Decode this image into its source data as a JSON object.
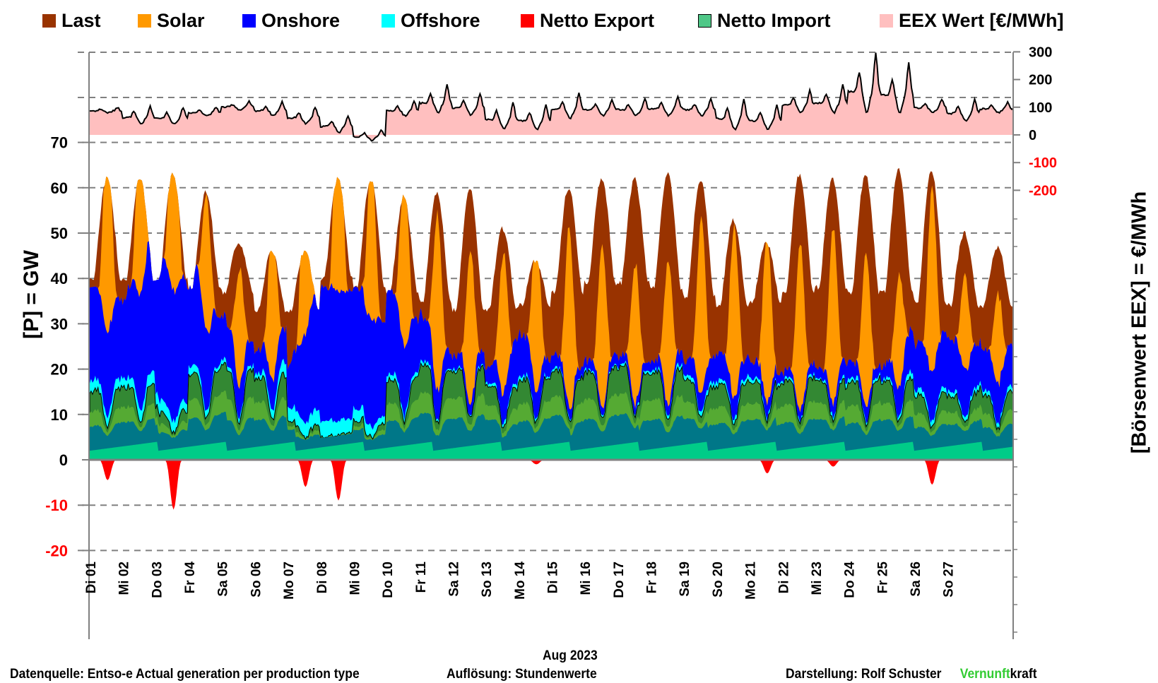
{
  "legend": [
    {
      "label": "Last",
      "color": "#993300",
      "border": ""
    },
    {
      "label": "Solar",
      "color": "#ff9900",
      "border": ""
    },
    {
      "label": "Onshore",
      "color": "#0000ff",
      "border": ""
    },
    {
      "label": "Offshore",
      "color": "#00ffff",
      "border": ""
    },
    {
      "label": "Netto Export",
      "color": "#ff0000",
      "border": ""
    },
    {
      "label": "Netto Import",
      "color": "#4fc787",
      "border": "#000000"
    },
    {
      "label": "EEX Wert [€/MWh]",
      "color": "#ffbfbf",
      "border": ""
    }
  ],
  "footer": {
    "source": "Datenquelle: Entso-e  Actual generation per production type",
    "resolution": "Auflösung: Stundenwerte",
    "author": "Darstellung:  Rolf Schuster",
    "brand_green": "Vernunft",
    "brand_black": "kraft",
    "brand_color": "#33cc33"
  },
  "chart_data": {
    "type": "area",
    "title": "",
    "xlabel": "Aug 2023",
    "ylabel_left": "[P]  =  GW",
    "ylabel_right": "[Börsenwert  EEX]  =  €/MWh",
    "resolution": "hourly",
    "ylim_left": [
      -20,
      70
    ],
    "yticks_left": [
      {
        "v": 70,
        "label": "70",
        "color": "#000000"
      },
      {
        "v": 60,
        "label": "60",
        "color": "#000000"
      },
      {
        "v": 50,
        "label": "50",
        "color": "#000000"
      },
      {
        "v": 40,
        "label": "40",
        "color": "#000000"
      },
      {
        "v": 30,
        "label": "30",
        "color": "#000000"
      },
      {
        "v": 20,
        "label": "20",
        "color": "#000000"
      },
      {
        "v": 10,
        "label": "10",
        "color": "#000000"
      },
      {
        "v": 0,
        "label": "0",
        "color": "#000000"
      },
      {
        "v": -10,
        "label": "-10",
        "color": "#ff0000"
      },
      {
        "v": -20,
        "label": "-20",
        "color": "#ff0000"
      }
    ],
    "yticks_right": [
      {
        "v": 300,
        "label": "300",
        "color": "#000000"
      },
      {
        "v": 200,
        "label": "200",
        "color": "#000000"
      },
      {
        "v": 100,
        "label": "100",
        "color": "#000000"
      },
      {
        "v": 0,
        "label": "0",
        "color": "#000000"
      },
      {
        "v": -100,
        "label": "-100",
        "color": "#ff0000"
      },
      {
        "v": -200,
        "label": "-200",
        "color": "#ff0000"
      }
    ],
    "grid": "horizontal-dashed",
    "legend_position": "top",
    "x_tick_labels": [
      "Di 01",
      "Mi 02",
      "Do 03",
      "Fr 04",
      "Sa 05",
      "So 06",
      "Mo 07",
      "Di 08",
      "Mi 09",
      "Do 10",
      "Fr 11",
      "Sa 12",
      "So 13",
      "Mo 14",
      "Di 15",
      "Mi 16",
      "Do 17",
      "Fr 18",
      "Sa 19",
      "So 20",
      "Mo 21",
      "Di 22",
      "Mi 23",
      "Do 24",
      "Fr 25",
      "Sa 26",
      "So 27"
    ],
    "days": 28,
    "series_daily": {
      "last_min_GW": [
        40,
        40,
        40,
        38,
        37,
        33,
        33,
        40,
        38,
        37,
        35,
        33,
        33,
        34,
        37,
        39,
        39,
        38,
        36,
        34,
        35,
        37,
        38,
        37,
        37,
        35,
        34,
        34
      ],
      "last_max_GW": [
        62,
        62,
        63,
        59,
        48,
        46,
        46,
        62,
        62,
        58,
        59,
        60,
        51,
        44,
        60,
        62,
        62,
        63,
        62,
        53,
        48,
        63,
        62,
        63,
        64,
        64,
        50,
        47
      ],
      "solar_peak_GW": [
        47,
        42,
        57,
        30,
        26,
        35,
        52,
        55,
        38,
        41,
        39,
        34,
        31,
        36,
        40,
        36,
        31,
        32,
        39,
        38,
        38,
        37,
        39,
        34,
        25,
        41,
        21,
        20
      ],
      "onshore_GW": [
        21,
        17,
        33,
        26,
        10,
        5,
        8,
        30,
        28,
        20,
        11,
        3,
        3,
        10,
        3,
        2,
        2,
        2,
        3,
        6,
        4,
        2,
        2,
        4,
        2,
        10,
        12,
        9
      ],
      "offshore_GW": [
        2.5,
        2,
        3,
        2,
        1,
        1,
        3,
        3.5,
        3,
        1.5,
        1,
        0.5,
        0.5,
        1,
        0.5,
        0.5,
        0.5,
        0.5,
        1,
        1,
        1,
        0.5,
        0.5,
        1,
        0.5,
        1.5,
        1,
        1
      ],
      "import_GW": [
        11,
        11,
        6,
        14,
        15,
        13,
        3,
        0,
        3,
        13,
        15,
        15,
        11,
        13,
        14,
        15,
        15,
        15,
        12,
        12,
        12,
        13,
        12,
        13,
        12,
        10,
        9,
        10
      ],
      "export_min_GW": [
        -4.5,
        0,
        -11,
        0,
        0,
        0,
        -6,
        -9,
        0,
        0,
        0,
        0,
        0,
        -1,
        0,
        0,
        0,
        0,
        0,
        0,
        -3,
        0,
        -1.5,
        0,
        0,
        -5.5,
        0,
        0
      ],
      "eex_min": [
        80,
        40,
        40,
        70,
        90,
        70,
        40,
        10,
        -20,
        70,
        80,
        70,
        20,
        20,
        60,
        70,
        70,
        70,
        70,
        20,
        20,
        80,
        80,
        80,
        80,
        80,
        50,
        80
      ],
      "eex_max": [
        100,
        105,
        100,
        100,
        120,
        120,
        100,
        70,
        20,
        120,
        180,
        150,
        120,
        110,
        150,
        130,
        130,
        140,
        130,
        130,
        110,
        160,
        180,
        300,
        260,
        130,
        130,
        120
      ]
    }
  }
}
